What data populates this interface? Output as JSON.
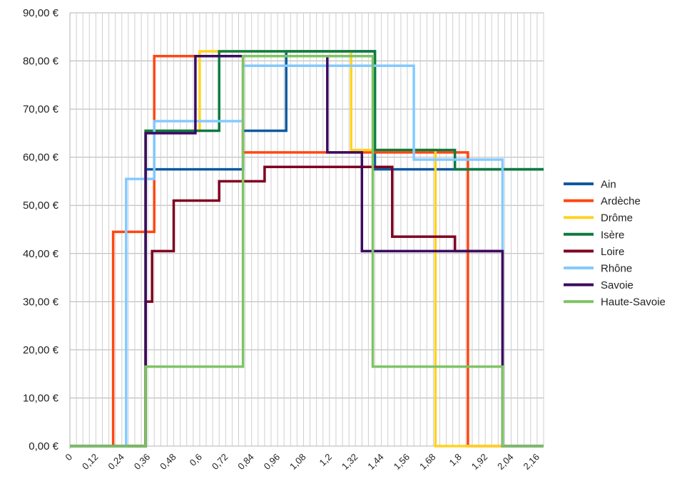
{
  "chart_data": {
    "type": "line",
    "step": true,
    "title": "",
    "xlabel": "",
    "ylabel": "",
    "xlim": [
      0,
      2.19
    ],
    "ylim": [
      0,
      90
    ],
    "y_ticks": [
      "0,00 €",
      "10,00 €",
      "20,00 €",
      "30,00 €",
      "40,00 €",
      "50,00 €",
      "60,00 €",
      "70,00 €",
      "80,00 €",
      "90,00 €"
    ],
    "y_tick_values": [
      0,
      10,
      20,
      30,
      40,
      50,
      60,
      70,
      80,
      90
    ],
    "x_tick_labels": [
      "0",
      "0,12",
      "0,24",
      "0,36",
      "0,48",
      "0,6",
      "0,72",
      "0,84",
      "0,96",
      "1,08",
      "1,2",
      "1,32",
      "1,44",
      "1,56",
      "1,68",
      "1,8",
      "1,92",
      "2,04",
      "2,16"
    ],
    "x_tick_values": [
      0,
      0.12,
      0.24,
      0.36,
      0.48,
      0.6,
      0.72,
      0.84,
      0.96,
      1.08,
      1.2,
      1.32,
      1.44,
      1.56,
      1.68,
      1.8,
      1.92,
      2.04,
      2.16
    ],
    "grid": {
      "horizontal": true,
      "vertical": true
    },
    "legend_position": "right",
    "series": [
      {
        "name": "Ain",
        "color": "#0e5aa0",
        "points": [
          [
            0,
            0
          ],
          [
            0.35,
            0
          ],
          [
            0.35,
            57.5
          ],
          [
            0.8,
            57.5
          ],
          [
            0.8,
            65.5
          ],
          [
            1.0,
            65.5
          ],
          [
            1.0,
            82
          ],
          [
            1.41,
            82
          ],
          [
            1.41,
            57.5
          ],
          [
            2.19,
            57.5
          ]
        ]
      },
      {
        "name": "Ardèche",
        "color": "#ff4712",
        "points": [
          [
            0,
            0
          ],
          [
            0.2,
            0
          ],
          [
            0.2,
            44.5
          ],
          [
            0.39,
            44.5
          ],
          [
            0.39,
            81
          ],
          [
            0.8,
            81
          ],
          [
            0.8,
            61
          ],
          [
            1.84,
            61
          ],
          [
            1.84,
            0
          ],
          [
            2.19,
            0
          ]
        ]
      },
      {
        "name": "Drôme",
        "color": "#ffd320",
        "points": [
          [
            0,
            0
          ],
          [
            0.35,
            0
          ],
          [
            0.35,
            65.5
          ],
          [
            0.6,
            65.5
          ],
          [
            0.6,
            82
          ],
          [
            1.3,
            82
          ],
          [
            1.3,
            61.5
          ],
          [
            1.69,
            61.5
          ],
          [
            1.69,
            0
          ],
          [
            2.19,
            0
          ]
        ]
      },
      {
        "name": "Isère",
        "color": "#0e7a40",
        "points": [
          [
            0,
            0
          ],
          [
            0.35,
            0
          ],
          [
            0.35,
            65.5
          ],
          [
            0.69,
            65.5
          ],
          [
            0.69,
            82
          ],
          [
            1.41,
            82
          ],
          [
            1.41,
            61.5
          ],
          [
            1.78,
            61.5
          ],
          [
            1.78,
            57.5
          ],
          [
            2.19,
            57.5
          ]
        ]
      },
      {
        "name": "Loire",
        "color": "#7f0020",
        "points": [
          [
            0,
            0
          ],
          [
            0.35,
            0
          ],
          [
            0.35,
            30
          ],
          [
            0.38,
            30
          ],
          [
            0.38,
            40.5
          ],
          [
            0.48,
            40.5
          ],
          [
            0.48,
            51
          ],
          [
            0.69,
            51
          ],
          [
            0.69,
            55
          ],
          [
            0.9,
            55
          ],
          [
            0.9,
            58
          ],
          [
            1.49,
            58
          ],
          [
            1.49,
            43.5
          ],
          [
            1.78,
            43.5
          ],
          [
            1.78,
            40.5
          ],
          [
            2.0,
            40.5
          ],
          [
            2.0,
            0
          ],
          [
            2.19,
            0
          ]
        ]
      },
      {
        "name": "Rhône",
        "color": "#83caff",
        "points": [
          [
            0,
            0
          ],
          [
            0.26,
            0
          ],
          [
            0.26,
            55.5
          ],
          [
            0.39,
            55.5
          ],
          [
            0.39,
            67.5
          ],
          [
            0.8,
            67.5
          ],
          [
            0.8,
            79
          ],
          [
            1.59,
            79
          ],
          [
            1.59,
            59.5
          ],
          [
            2.0,
            59.5
          ],
          [
            2.0,
            0
          ],
          [
            2.19,
            0
          ]
        ]
      },
      {
        "name": "Savoie",
        "color": "#3c0a60",
        "points": [
          [
            0,
            0
          ],
          [
            0.35,
            0
          ],
          [
            0.35,
            65
          ],
          [
            0.58,
            65
          ],
          [
            0.58,
            81
          ],
          [
            1.19,
            81
          ],
          [
            1.19,
            61
          ],
          [
            1.35,
            61
          ],
          [
            1.35,
            40.5
          ],
          [
            2.0,
            40.5
          ],
          [
            2.0,
            0
          ],
          [
            2.19,
            0
          ]
        ]
      },
      {
        "name": "Haute-Savoie",
        "color": "#7ec463",
        "points": [
          [
            0,
            0
          ],
          [
            0.35,
            0
          ],
          [
            0.35,
            16.5
          ],
          [
            0.8,
            16.5
          ],
          [
            0.8,
            81
          ],
          [
            1.4,
            81
          ],
          [
            1.4,
            16.5
          ],
          [
            2.0,
            16.5
          ],
          [
            2.0,
            0
          ],
          [
            2.19,
            0
          ]
        ]
      }
    ]
  }
}
